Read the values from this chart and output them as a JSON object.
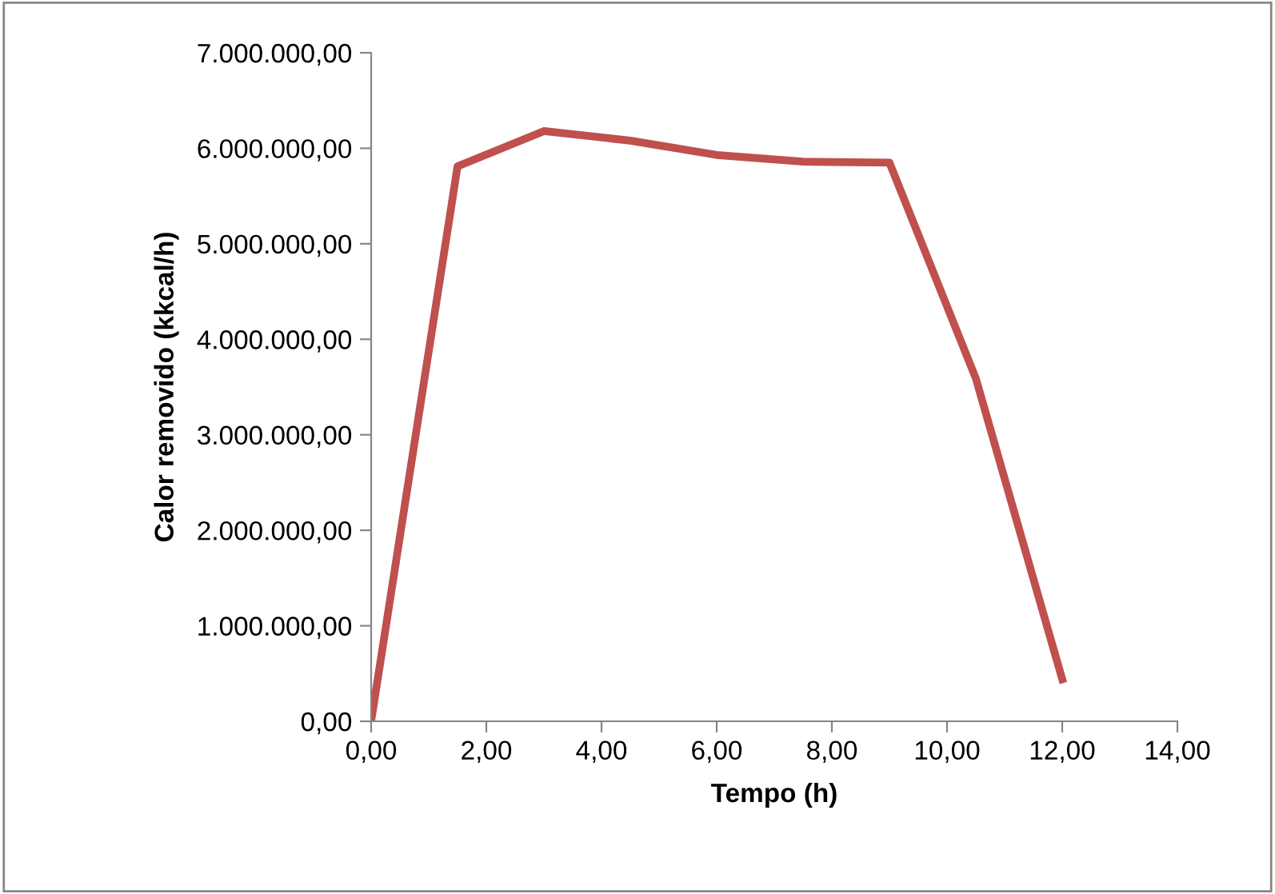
{
  "chart_data": {
    "type": "line",
    "xlabel": "Tempo (h)",
    "ylabel": "Calor removido (kkcal/h)",
    "x": [
      0,
      1.5,
      3,
      4.5,
      6,
      7.5,
      9,
      10.5,
      12
    ],
    "series": [
      {
        "color": "#c0504d",
        "values": [
          0,
          5810000,
          6180000,
          6080000,
          5930000,
          5860000,
          5850000,
          3590000,
          440000
        ]
      }
    ],
    "xlim": [
      0,
      14
    ],
    "ylim": [
      0,
      7000000
    ],
    "xticks": [
      {
        "value": 0,
        "label": "0,00"
      },
      {
        "value": 2,
        "label": "2,00"
      },
      {
        "value": 4,
        "label": "4,00"
      },
      {
        "value": 6,
        "label": "6,00"
      },
      {
        "value": 8,
        "label": "8,00"
      },
      {
        "value": 10,
        "label": "10,00"
      },
      {
        "value": 12,
        "label": "12,00"
      },
      {
        "value": 14,
        "label": "14,00"
      }
    ],
    "yticks": [
      {
        "value": 0,
        "label": "0,00"
      },
      {
        "value": 1000000,
        "label": "1.000.000,00"
      },
      {
        "value": 2000000,
        "label": "2.000.000,00"
      },
      {
        "value": 3000000,
        "label": "3.000.000,00"
      },
      {
        "value": 4000000,
        "label": "4.000.000,00"
      },
      {
        "value": 5000000,
        "label": "5.000.000,00"
      },
      {
        "value": 6000000,
        "label": "6.000.000,00"
      },
      {
        "value": 7000000,
        "label": "7.000.000,00"
      }
    ],
    "grid": false,
    "marker": "none",
    "line_style": "solid"
  }
}
